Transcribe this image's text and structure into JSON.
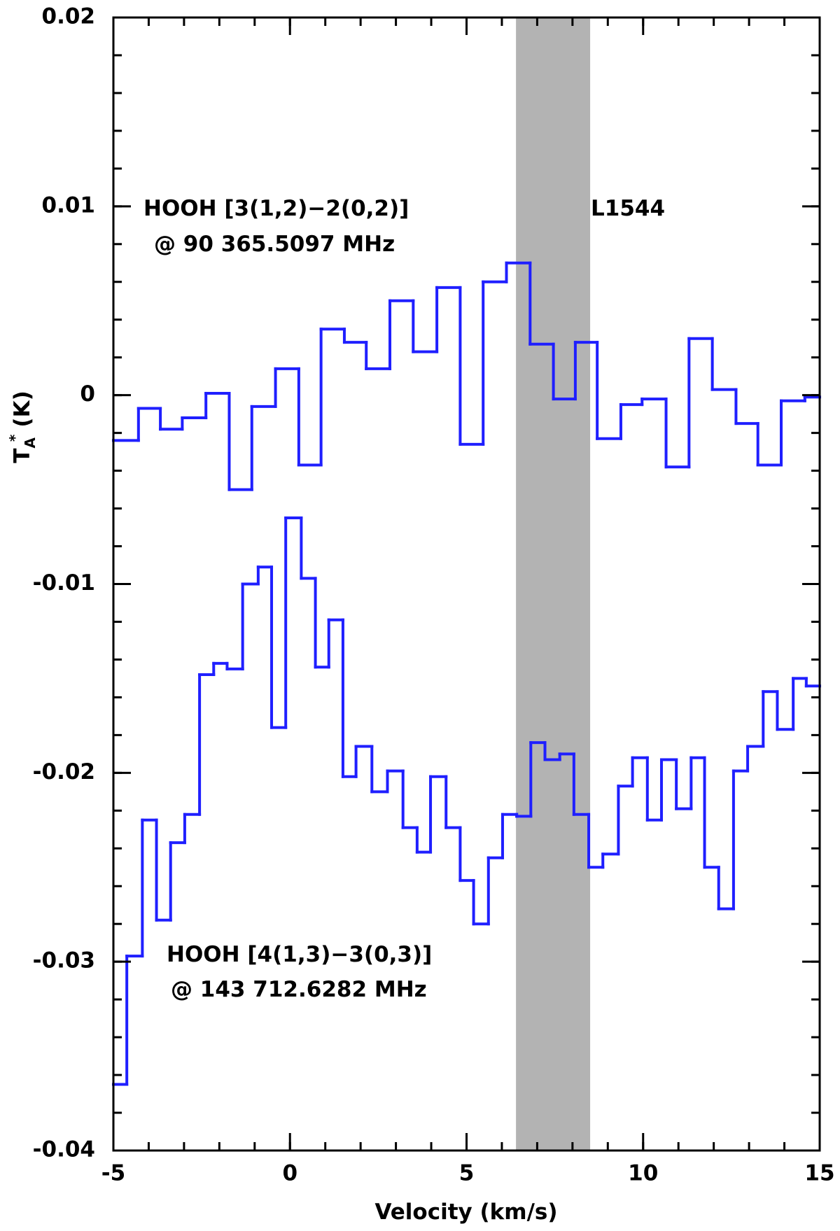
{
  "chart_data": {
    "type": "step",
    "xlabel": "Velocity (km/s)",
    "ylabel": {
      "main": "T",
      "sub": "A",
      "sup": "*",
      "unit": "(K)"
    },
    "annotations": [
      "HOOH [3(1,2)−2(0,2)]",
      "@ 90 365.5097 MHz",
      "L1544",
      "HOOH [4(1,3)−3(0,3)]",
      "@ 143 712.6282 MHz"
    ],
    "xlim": [
      -5,
      15
    ],
    "ylim": [
      -0.04,
      0.02
    ],
    "xticks": [
      -5,
      0,
      5,
      10,
      15
    ],
    "yticks": [
      -0.04,
      -0.03,
      -0.02,
      -0.01,
      0,
      0.01,
      0.02
    ],
    "xminorticks": [
      -5,
      -4,
      -3,
      -2,
      -1,
      0,
      1,
      2,
      3,
      4,
      5,
      6,
      7,
      8,
      9,
      10,
      11,
      12,
      13,
      14,
      15
    ],
    "yminorticks": [
      -0.04,
      -0.038,
      -0.036,
      -0.034,
      -0.032,
      -0.03,
      -0.028,
      -0.026,
      -0.024,
      -0.022,
      -0.02,
      -0.018,
      -0.016,
      -0.014,
      -0.012,
      -0.01,
      -0.008,
      -0.006,
      -0.004,
      -0.002,
      0,
      0.002,
      0.004,
      0.006,
      0.008,
      0.01,
      0.012,
      0.014,
      0.016,
      0.018,
      0.02
    ],
    "shaded_region": {
      "x": [
        6.4,
        8.5
      ],
      "color": "#b3b3b3"
    },
    "step": "post",
    "series": [
      {
        "color": "#1f1fff",
        "x": [
          -5,
          -4.29,
          -3.67,
          -3.05,
          -2.38,
          -1.72,
          -1.08,
          -0.41,
          0.25,
          0.88,
          1.54,
          2.16,
          2.83,
          3.49,
          4.16,
          4.82,
          5.47,
          6.13,
          6.8,
          7.46,
          8.08,
          8.7,
          9.37,
          9.97,
          10.65,
          11.3,
          11.96,
          12.63,
          13.25,
          13.91,
          14.58
        ],
        "values": [
          -0.0024,
          -0.0007,
          -0.0018,
          -0.0012,
          0.0001,
          -0.005,
          -0.0006,
          0.0014,
          -0.0037,
          0.0035,
          0.0028,
          0.0014,
          0.005,
          0.0023,
          0.0057,
          -0.0026,
          0.006,
          0.007,
          0.0027,
          -0.0002,
          0.0028,
          -0.0023,
          -0.0005,
          -0.0002,
          -0.0038,
          0.003,
          0.0003,
          -0.0015,
          -0.0037,
          -0.0003,
          -0.0001
        ]
      },
      {
        "color": "#1f1fff",
        "x": [
          -5,
          -4.62,
          -4.18,
          -3.78,
          -3.38,
          -2.98,
          -2.56,
          -2.16,
          -1.78,
          -1.34,
          -0.9,
          -0.52,
          -0.12,
          0.32,
          0.72,
          1.1,
          1.5,
          1.87,
          2.32,
          2.76,
          3.2,
          3.6,
          3.98,
          4.42,
          4.82,
          5.2,
          5.62,
          6.02,
          6.42,
          6.82,
          7.22,
          7.64,
          8.04,
          8.46,
          8.86,
          9.3,
          9.7,
          10.12,
          10.52,
          10.94,
          11.36,
          11.74,
          12.14,
          12.56,
          12.96,
          13.4,
          13.8,
          14.25,
          14.62
        ],
        "values": [
          -0.0365,
          -0.0297,
          -0.0225,
          -0.0278,
          -0.0237,
          -0.0222,
          -0.0148,
          -0.0142,
          -0.0145,
          -0.01,
          -0.0091,
          -0.0176,
          -0.0065,
          -0.0097,
          -0.0144,
          -0.0119,
          -0.0202,
          -0.0186,
          -0.021,
          -0.0199,
          -0.0229,
          -0.0242,
          -0.0202,
          -0.0229,
          -0.0257,
          -0.028,
          -0.0245,
          -0.0222,
          -0.0223,
          -0.0184,
          -0.0193,
          -0.019,
          -0.0222,
          -0.025,
          -0.0243,
          -0.0207,
          -0.0192,
          -0.0225,
          -0.0193,
          -0.0219,
          -0.0192,
          -0.025,
          -0.0272,
          -0.0199,
          -0.0186,
          -0.0157,
          -0.0177,
          -0.015,
          -0.0154
        ]
      }
    ]
  }
}
